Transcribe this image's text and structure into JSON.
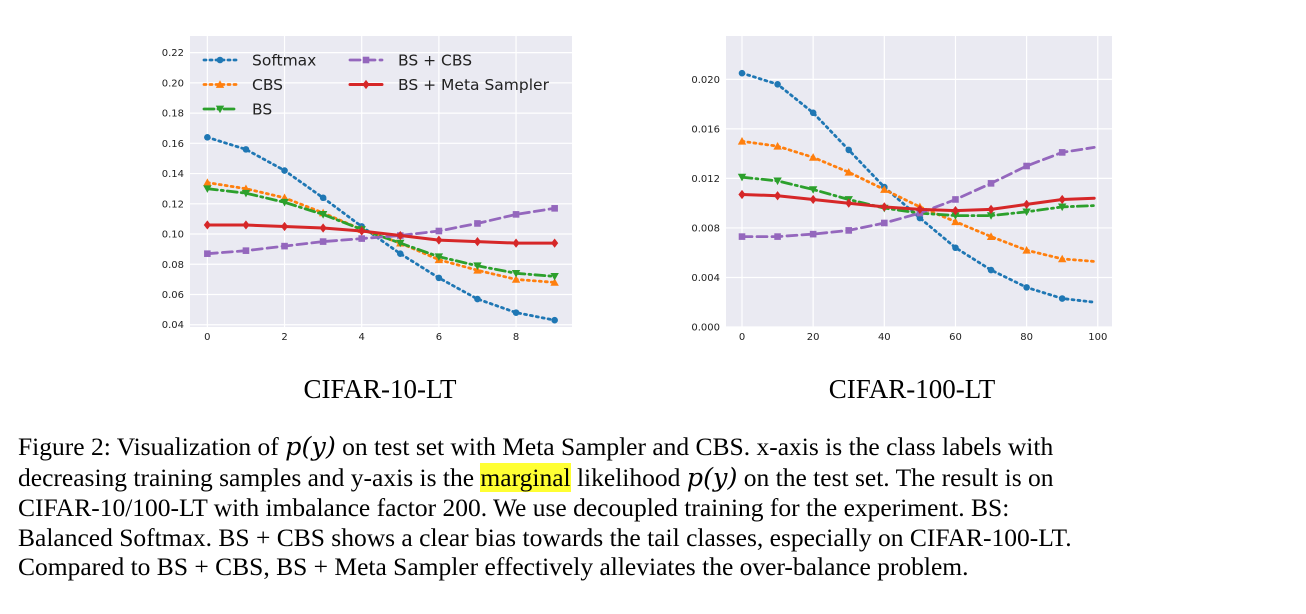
{
  "chart_data": [
    {
      "type": "line",
      "title": "CIFAR-10-LT",
      "xticks": [
        "0",
        "2",
        "4",
        "6",
        "8"
      ],
      "yticks": [
        "0.04",
        "0.06",
        "0.08",
        "0.10",
        "0.12",
        "0.14",
        "0.16",
        "0.18",
        "0.20",
        "0.22"
      ],
      "xlim": [
        -0.45,
        9.45
      ],
      "ylim": [
        0.0385,
        0.231
      ],
      "grid": true,
      "legend": "top-left, two columns",
      "x": [
        0,
        1,
        2,
        3,
        4,
        5,
        6,
        7,
        8,
        9
      ],
      "series": [
        {
          "name": "Softmax",
          "color": "#1f77b4",
          "style": "dotted",
          "marker": "circle",
          "values": [
            0.164,
            0.156,
            0.142,
            0.124,
            0.105,
            0.087,
            0.071,
            0.057,
            0.048,
            0.043
          ]
        },
        {
          "name": "CBS",
          "color": "#ff7f0e",
          "style": "dotted",
          "marker": "triangle-up",
          "values": [
            0.134,
            0.13,
            0.124,
            0.114,
            0.103,
            0.094,
            0.083,
            0.076,
            0.07,
            0.068
          ]
        },
        {
          "name": "BS",
          "color": "#2ca02c",
          "style": "dashdot",
          "marker": "triangle-down",
          "values": [
            0.13,
            0.127,
            0.121,
            0.113,
            0.103,
            0.094,
            0.085,
            0.079,
            0.074,
            0.072
          ]
        },
        {
          "name": "BS + CBS",
          "color": "#9467bd",
          "style": "dashed",
          "marker": "square",
          "values": [
            0.087,
            0.089,
            0.092,
            0.095,
            0.097,
            0.099,
            0.102,
            0.107,
            0.113,
            0.117
          ]
        },
        {
          "name": "BS + Meta Sampler",
          "color": "#d62728",
          "style": "solid",
          "marker": "diamond",
          "values": [
            0.106,
            0.106,
            0.105,
            0.104,
            0.102,
            0.099,
            0.096,
            0.095,
            0.094,
            0.094
          ]
        }
      ]
    },
    {
      "type": "line",
      "title": "CIFAR-100-LT",
      "xticks": [
        "0",
        "20",
        "40",
        "60",
        "80",
        "100"
      ],
      "yticks": [
        "0.000",
        "0.004",
        "0.008",
        "0.012",
        "0.016",
        "0.020"
      ],
      "xlim": [
        -4.5,
        104
      ],
      "ylim": [
        0.0,
        0.0235
      ],
      "grid": true,
      "legend": "",
      "x": [
        0,
        10,
        20,
        30,
        40,
        50,
        60,
        70,
        80,
        90,
        99
      ],
      "markers_at": [
        0,
        10,
        20,
        30,
        40,
        50,
        60,
        70,
        80,
        90
      ],
      "series": [
        {
          "name": "Softmax",
          "color": "#1f77b4",
          "style": "dotted",
          "marker": "circle",
          "values": [
            0.0205,
            0.0196,
            0.0173,
            0.0143,
            0.0113,
            0.0088,
            0.0064,
            0.0046,
            0.0032,
            0.0023,
            0.002
          ]
        },
        {
          "name": "CBS",
          "color": "#ff7f0e",
          "style": "dotted",
          "marker": "triangle-up",
          "values": [
            0.015,
            0.0146,
            0.0137,
            0.0125,
            0.0111,
            0.0097,
            0.0085,
            0.0073,
            0.0062,
            0.0055,
            0.0053
          ]
        },
        {
          "name": "BS",
          "color": "#2ca02c",
          "style": "dashdot",
          "marker": "triangle-down",
          "values": [
            0.0121,
            0.0118,
            0.0111,
            0.0103,
            0.0096,
            0.0092,
            0.009,
            0.009,
            0.0093,
            0.0097,
            0.0098
          ]
        },
        {
          "name": "BS + CBS",
          "color": "#9467bd",
          "style": "dashed",
          "marker": "square",
          "values": [
            0.0073,
            0.0073,
            0.0075,
            0.0078,
            0.0084,
            0.0092,
            0.0103,
            0.0116,
            0.013,
            0.0141,
            0.0145
          ]
        },
        {
          "name": "BS + Meta Sampler",
          "color": "#d62728",
          "style": "solid",
          "marker": "diamond",
          "values": [
            0.0107,
            0.0106,
            0.0103,
            0.01,
            0.0097,
            0.0095,
            0.0094,
            0.0095,
            0.0099,
            0.0103,
            0.0104
          ]
        }
      ]
    }
  ],
  "caption": {
    "line1_a": "Figure 2: Visualization of ",
    "line1_math": "p(y)",
    "line1_b": " on test set with Meta Sampler and CBS. x-axis is the class labels with",
    "line2_a": "decreasing training samples and y-axis is the ",
    "line2_highlight": "marginal",
    "line2_b": " likelihood ",
    "line2_math": "p(y)",
    "line2_c": " on the test set. The result is on",
    "line3": "CIFAR-10/100-LT with imbalance factor 200. We use decoupled training for the experiment. BS:",
    "line4": "Balanced Softmax. BS + CBS shows a clear bias towards the tail classes, especially on CIFAR-100-LT.",
    "line5": "Compared to BS + CBS, BS + Meta Sampler effectively alleviates the over-balance problem."
  },
  "colors": {
    "plot_background": "#eaeaf2",
    "grid": "#ffffff",
    "highlight": "#ffff33"
  }
}
